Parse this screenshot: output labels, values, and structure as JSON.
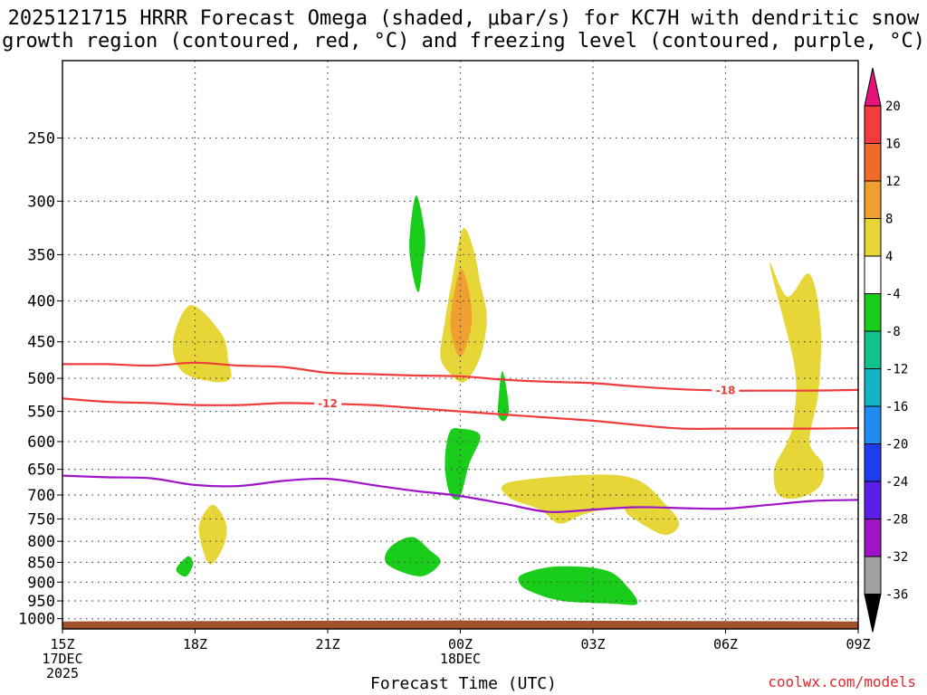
{
  "title": {
    "line1": "2025121715 HRRR Forecast Omega (shaded, μbar/s) for KC7H with dendritic snow",
    "line2": "growth region (contoured, red, °C) and freezing level (contoured, purple, °C)"
  },
  "credit": "coolwx.com/models",
  "chart_data": {
    "type": "contour",
    "title": "2025121715 HRRR Forecast Omega (shaded, μbar/s) for KC7H with dendritic snow growth region (contoured, red, °C) and freezing level (contoured, purple, °C)",
    "xlabel": "Forecast Time (UTC)",
    "ylabel": "",
    "x_ticks": [
      {
        "hour": 0,
        "lines": [
          "15Z",
          "17DEC",
          "2025"
        ]
      },
      {
        "hour": 3,
        "lines": [
          "18Z"
        ]
      },
      {
        "hour": 6,
        "lines": [
          "21Z"
        ]
      },
      {
        "hour": 9,
        "lines": [
          "00Z",
          "18DEC"
        ]
      },
      {
        "hour": 12,
        "lines": [
          "03Z"
        ]
      },
      {
        "hour": 15,
        "lines": [
          "06Z"
        ]
      },
      {
        "hour": 18,
        "lines": [
          "09Z"
        ]
      }
    ],
    "xlim_hours": [
      0,
      18
    ],
    "y_ticks": [
      250,
      300,
      350,
      400,
      450,
      500,
      550,
      600,
      650,
      700,
      750,
      800,
      850,
      900,
      950,
      1000
    ],
    "ylim_hPa": [
      200,
      1030
    ],
    "colorbar": {
      "ticks": [
        20,
        16,
        12,
        8,
        4,
        -4,
        -8,
        -12,
        -16,
        -20,
        -24,
        -28,
        -32,
        -36
      ],
      "bins": [
        {
          "range": "above 20",
          "color": "#e6137c"
        },
        {
          "range": "16 to 20",
          "color": "#f23c3c"
        },
        {
          "range": "12 to 16",
          "color": "#f06a2a"
        },
        {
          "range": "8 to 12",
          "color": "#f0a030"
        },
        {
          "range": "4 to 8",
          "color": "#e6d637"
        },
        {
          "range": "-4 to 4",
          "color": "#ffffff"
        },
        {
          "range": "-8 to -4",
          "color": "#1bcd1b"
        },
        {
          "range": "-12 to -8",
          "color": "#12c28c"
        },
        {
          "range": "-16 to -12",
          "color": "#14b4c8"
        },
        {
          "range": "-20 to -16",
          "color": "#1e8cf0"
        },
        {
          "range": "-24 to -20",
          "color": "#1e3cf0"
        },
        {
          "range": "-28 to -24",
          "color": "#5a1ee6"
        },
        {
          "range": "-32 to -28",
          "color": "#a014c8"
        },
        {
          "range": "-36 to -32",
          "color": "#a0a0a0"
        },
        {
          "range": "below -36",
          "color": "#000000"
        }
      ]
    },
    "shaded_regions": [
      {
        "name": "yellow-region-1",
        "value_bin": "4 to 8",
        "color": "#e6d637",
        "points": [
          [
            2.5,
            450
          ],
          [
            2.9,
            405
          ],
          [
            3.6,
            440
          ],
          [
            3.75,
            475
          ],
          [
            3.8,
            500
          ],
          [
            3.4,
            505
          ],
          [
            2.7,
            490
          ]
        ]
      },
      {
        "name": "yellow-region-2",
        "value_bin": "4 to 8",
        "color": "#e6d637",
        "points": [
          [
            8.65,
            425
          ],
          [
            8.8,
            380
          ],
          [
            9.05,
            325
          ],
          [
            9.3,
            345
          ],
          [
            9.45,
            380
          ],
          [
            9.6,
            420
          ],
          [
            9.45,
            470
          ],
          [
            9.1,
            505
          ],
          [
            8.8,
            495
          ],
          [
            8.55,
            470
          ]
        ]
      },
      {
        "name": "orange-region",
        "value_bin": "8 to 12",
        "color": "#f0a030",
        "points": [
          [
            8.8,
            410
          ],
          [
            9.0,
            365
          ],
          [
            9.2,
            390
          ],
          [
            9.25,
            430
          ],
          [
            9.0,
            470
          ],
          [
            8.8,
            440
          ]
        ]
      },
      {
        "name": "green-region-1",
        "value_bin": "-8 to -4",
        "color": "#1bcd1b",
        "points": [
          [
            7.85,
            335
          ],
          [
            8.0,
            295
          ],
          [
            8.2,
            330
          ],
          [
            8.15,
            360
          ],
          [
            8.05,
            390
          ],
          [
            7.9,
            365
          ]
        ]
      },
      {
        "name": "green-region-2",
        "value_bin": "-8 to -4",
        "color": "#1bcd1b",
        "points": [
          [
            9.85,
            545
          ],
          [
            9.95,
            490
          ],
          [
            10.1,
            545
          ],
          [
            10.0,
            565
          ],
          [
            9.88,
            560
          ]
        ]
      },
      {
        "name": "green-region-3",
        "value_bin": "-8 to -4",
        "color": "#1bcd1b",
        "points": [
          [
            8.65,
            640
          ],
          [
            8.75,
            585
          ],
          [
            9.0,
            578
          ],
          [
            9.45,
            590
          ],
          [
            9.2,
            640
          ],
          [
            9.05,
            690
          ],
          [
            8.95,
            710
          ],
          [
            8.75,
            695
          ]
        ]
      },
      {
        "name": "yellow-region-3",
        "value_bin": "4 to 8",
        "color": "#e6d637",
        "points": [
          [
            16.0,
            360
          ],
          [
            16.4,
            395
          ],
          [
            16.9,
            370
          ],
          [
            17.15,
            430
          ],
          [
            17.1,
            520
          ],
          [
            16.9,
            600
          ],
          [
            17.2,
            640
          ],
          [
            17.15,
            680
          ],
          [
            16.7,
            705
          ],
          [
            16.2,
            700
          ],
          [
            16.1,
            650
          ],
          [
            16.4,
            600
          ],
          [
            16.55,
            560
          ],
          [
            16.55,
            480
          ]
        ]
      },
      {
        "name": "yellow-region-4",
        "value_bin": "4 to 8",
        "color": "#e6d637",
        "points": [
          [
            10.1,
            675
          ],
          [
            12.0,
            660
          ],
          [
            13.0,
            670
          ],
          [
            13.6,
            715
          ],
          [
            13.95,
            760
          ],
          [
            13.6,
            785
          ],
          [
            12.85,
            745
          ],
          [
            12.6,
            725
          ],
          [
            11.8,
            740
          ],
          [
            11.25,
            760
          ],
          [
            10.8,
            730
          ],
          [
            10.1,
            705
          ]
        ]
      },
      {
        "name": "yellow-region-5",
        "value_bin": "4 to 8",
        "color": "#e6d637",
        "points": [
          [
            3.1,
            760
          ],
          [
            3.4,
            720
          ],
          [
            3.7,
            760
          ],
          [
            3.65,
            810
          ],
          [
            3.35,
            855
          ],
          [
            3.15,
            810
          ]
        ]
      },
      {
        "name": "green-region-4",
        "value_bin": "-8 to -4",
        "color": "#1bcd1b",
        "points": [
          [
            7.4,
            815
          ],
          [
            7.9,
            790
          ],
          [
            8.3,
            820
          ],
          [
            8.55,
            850
          ],
          [
            8.1,
            885
          ],
          [
            7.35,
            855
          ]
        ]
      },
      {
        "name": "green-region-5",
        "value_bin": "-8 to -4",
        "color": "#1bcd1b",
        "points": [
          [
            2.6,
            860
          ],
          [
            2.85,
            835
          ],
          [
            2.95,
            855
          ],
          [
            2.8,
            885
          ],
          [
            2.6,
            875
          ]
        ]
      },
      {
        "name": "green-region-6",
        "value_bin": "-8 to -4",
        "color": "#1bcd1b",
        "points": [
          [
            10.4,
            880
          ],
          [
            11.2,
            860
          ],
          [
            12.3,
            870
          ],
          [
            12.8,
            915
          ],
          [
            13.0,
            958
          ],
          [
            12.5,
            958
          ],
          [
            11.3,
            950
          ],
          [
            10.6,
            925
          ],
          [
            10.35,
            905
          ]
        ]
      }
    ],
    "contours": [
      {
        "name": "dgz-minus-18",
        "label": "-18",
        "color": "#f03c3c",
        "label_at_hour": 15.0,
        "points": [
          [
            0,
            480
          ],
          [
            1,
            480
          ],
          [
            2,
            482
          ],
          [
            3,
            478
          ],
          [
            4,
            482
          ],
          [
            5,
            484
          ],
          [
            6,
            492
          ],
          [
            7,
            494
          ],
          [
            8,
            496
          ],
          [
            9,
            497
          ],
          [
            10,
            502
          ],
          [
            11,
            505
          ],
          [
            12,
            507
          ],
          [
            13,
            512
          ],
          [
            14,
            516
          ],
          [
            15,
            518
          ],
          [
            16,
            518
          ],
          [
            17,
            518
          ],
          [
            18,
            517
          ]
        ]
      },
      {
        "name": "dgz-minus-12",
        "label": "-12",
        "color": "#f03c3c",
        "label_at_hour": 6.0,
        "points": [
          [
            0,
            530
          ],
          [
            1,
            535
          ],
          [
            2,
            537
          ],
          [
            3,
            540
          ],
          [
            4,
            540
          ],
          [
            5,
            537
          ],
          [
            6,
            538
          ],
          [
            7,
            540
          ],
          [
            8,
            545
          ],
          [
            9,
            550
          ],
          [
            10,
            555
          ],
          [
            11,
            560
          ],
          [
            12,
            565
          ],
          [
            13,
            572
          ],
          [
            14,
            578
          ],
          [
            15,
            578
          ],
          [
            16,
            578
          ],
          [
            17,
            578
          ],
          [
            18,
            577
          ]
        ]
      },
      {
        "name": "freezing-level",
        "label": "",
        "color": "#a014c8",
        "points": [
          [
            0,
            662
          ],
          [
            1,
            665
          ],
          [
            2,
            667
          ],
          [
            3,
            680
          ],
          [
            4,
            682
          ],
          [
            5,
            672
          ],
          [
            6,
            668
          ],
          [
            7,
            680
          ],
          [
            8,
            692
          ],
          [
            9,
            702
          ],
          [
            10,
            718
          ],
          [
            11,
            735
          ],
          [
            12,
            730
          ],
          [
            13,
            725
          ],
          [
            14,
            727
          ],
          [
            15,
            728
          ],
          [
            16,
            720
          ],
          [
            17,
            712
          ],
          [
            18,
            710
          ]
        ]
      }
    ],
    "surface_hPa": [
      1008,
      1005
    ]
  }
}
